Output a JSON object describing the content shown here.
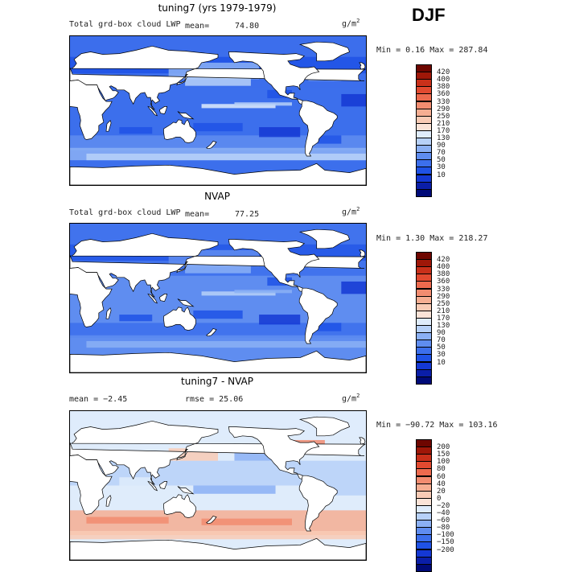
{
  "season": "DJF",
  "colors": {
    "abs": [
      "#000a78",
      "#0a1ea8",
      "#1438d4",
      "#1f52e6",
      "#3c6fec",
      "#5f8df0",
      "#8bb0f4",
      "#b7d1f8",
      "#dfecfb",
      "#fbe3d7",
      "#f9cbb5",
      "#f6ae92",
      "#f28c70",
      "#ed6a4e",
      "#e24a30",
      "#c9301a",
      "#9f1708",
      "#6e0600"
    ],
    "diff": [
      "#000a78",
      "#0a1ea8",
      "#1438d4",
      "#1f52e6",
      "#3c6fec",
      "#5f8df0",
      "#8bb0f4",
      "#b7d1f8",
      "#dfecfb",
      "#fbe3d7",
      "#f9cbb5",
      "#f6ae92",
      "#f28c70",
      "#ed6a4e",
      "#e24a30",
      "#c9301a",
      "#9f1708",
      "#6e0600"
    ]
  },
  "panels": [
    {
      "title": "tuning7 (yrs 1979-1979)",
      "variable": "Total grd-box cloud LWP",
      "mean_label": "mean=",
      "mean_value": "74.80",
      "unit": "g/m",
      "unit_exp": "2",
      "stats": "Min =   0.16 Max = 287.84",
      "levels": [
        "420",
        "400",
        "380",
        "360",
        "330",
        "290",
        "250",
        "210",
        "170",
        "130",
        "90",
        "70",
        "50",
        "30",
        "10"
      ]
    },
    {
      "title": "NVAP",
      "variable": "Total grd-box cloud LWP",
      "mean_label": "mean=",
      "mean_value": "77.25",
      "unit": "g/m",
      "unit_exp": "2",
      "stats": "Min =   1.30 Max = 218.27",
      "levels": [
        "420",
        "400",
        "380",
        "360",
        "330",
        "290",
        "250",
        "210",
        "170",
        "130",
        "90",
        "70",
        "50",
        "30",
        "10"
      ]
    },
    {
      "title": "tuning7 - NVAP",
      "mean_text": "mean =  −2.45",
      "rmse_text": "rmse =  25.06",
      "unit": "g/m",
      "unit_exp": "2",
      "stats": "Min = −90.72 Max = 103.16",
      "levels": [
        "200",
        "150",
        "100",
        "80",
        "60",
        "40",
        "20",
        "0",
        "−20",
        "−40",
        "−60",
        "−80",
        "−100",
        "−150",
        "−200"
      ]
    }
  ]
}
